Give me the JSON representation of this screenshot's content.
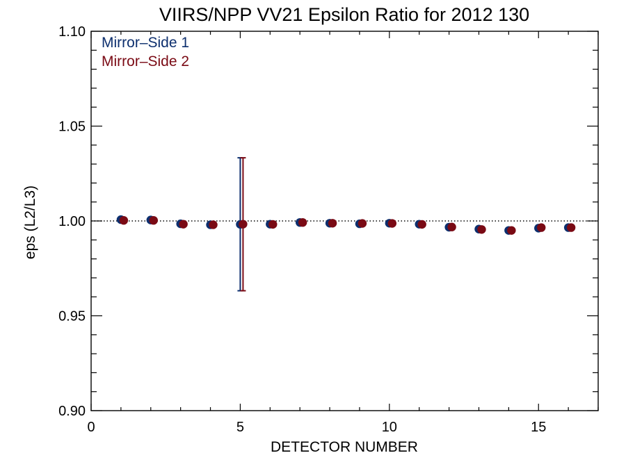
{
  "chart_data": {
    "type": "scatter",
    "title": "VIIRS/NPP VV21 Epsilon Ratio for 2012 130",
    "xlabel": "DETECTOR NUMBER",
    "ylabel": "eps (L2/L3)",
    "xlim": [
      0,
      17
    ],
    "ylim": [
      0.9,
      1.1
    ],
    "xticks": [
      0,
      5,
      10,
      15
    ],
    "xtick_labels": [
      "0",
      "5",
      "10",
      "15"
    ],
    "yticks": [
      0.9,
      0.95,
      1.0,
      1.05,
      1.1
    ],
    "ytick_labels": [
      "0.90",
      "0.95",
      "1.00",
      "1.05",
      "1.10"
    ],
    "reference_line": {
      "y": 1.0,
      "style": "dotted"
    },
    "legend_position": "top-left",
    "series": [
      {
        "name": "Mirror–Side 1",
        "color": "#0d2f6e",
        "x": [
          1,
          2,
          3,
          4,
          5,
          6,
          7,
          8,
          9,
          10,
          11,
          12,
          13,
          14,
          15,
          16
        ],
        "y": [
          1.0007,
          1.0005,
          0.9985,
          0.998,
          0.9982,
          0.9983,
          0.9992,
          0.9988,
          0.9985,
          0.9988,
          0.9983,
          0.9967,
          0.9957,
          0.995,
          0.9962,
          0.9965
        ],
        "error_bars": [
          {
            "x": 5,
            "low": 0.9632,
            "high": 1.0333
          }
        ]
      },
      {
        "name": "Mirror–Side 2",
        "color": "#7a0a14",
        "x": [
          1,
          2,
          3,
          4,
          5,
          6,
          7,
          8,
          9,
          10,
          11,
          12,
          13,
          14,
          15,
          16
        ],
        "y": [
          1.0003,
          1.0003,
          0.9983,
          0.998,
          0.9983,
          0.9982,
          0.9992,
          0.9988,
          0.9987,
          0.9987,
          0.9982,
          0.9968,
          0.9955,
          0.995,
          0.9965,
          0.9965
        ],
        "error_bars": [
          {
            "x": 5,
            "low": 0.9632,
            "high": 1.0333
          }
        ]
      }
    ]
  }
}
